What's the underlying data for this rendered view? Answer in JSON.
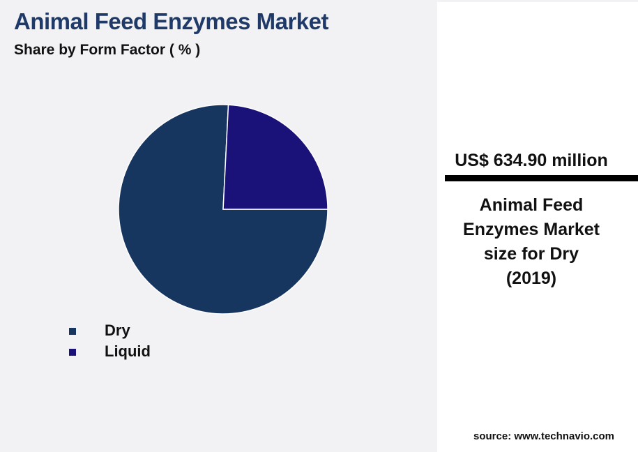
{
  "chart_data": {
    "type": "pie",
    "title": "Animal Feed Enzymes Market",
    "subtitle": "Share by Form Factor ( % )",
    "categories": [
      "Dry",
      "Liquid"
    ],
    "values": [
      75.8,
      24.2
    ],
    "colors": [
      "#17365f",
      "#1a1278"
    ]
  },
  "callout": {
    "value": "US$ 634.90 million",
    "label": "Animal Feed Enzymes Market size for Dry (2019)"
  },
  "source": "source: www.technavio.com"
}
